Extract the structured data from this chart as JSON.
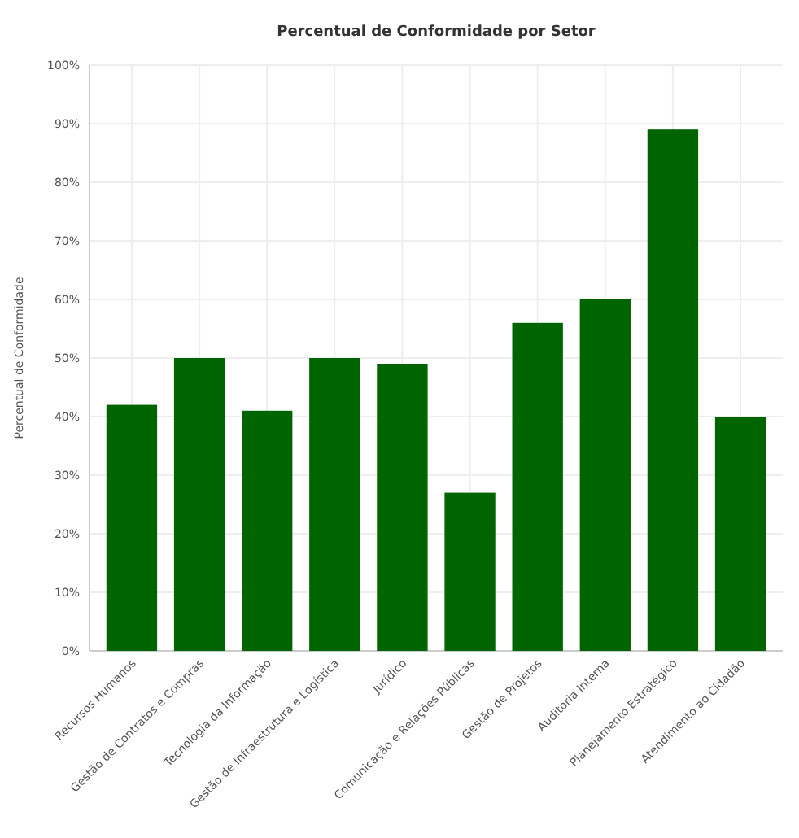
{
  "chart_data": {
    "type": "bar",
    "title": "Percentual de Conformidade por Setor",
    "ylabel": "Percentual de Conformidade",
    "categories": [
      "Recursos Humanos",
      "Gestão de Contratos e Compras",
      "Tecnologia da Informação",
      "Gestão de Infraestrutura e Logística",
      "Jurídico",
      "Comunicação e Relações Públicas",
      "Gestão de Projetos",
      "Auditoria Interna",
      "Planejamento Estratégico",
      "Atendimento ao Cidadão"
    ],
    "values": [
      42,
      50,
      41,
      50,
      49,
      27,
      56,
      60,
      89,
      40
    ],
    "color": "#006400",
    "ylim": [
      0,
      100
    ],
    "yticks": [
      {
        "value": 0,
        "label": "0%"
      },
      {
        "value": 10,
        "label": "10%"
      },
      {
        "value": 20,
        "label": "20%"
      },
      {
        "value": 30,
        "label": "30%"
      },
      {
        "value": 40,
        "label": "40%"
      },
      {
        "value": 50,
        "label": "50%"
      },
      {
        "value": 60,
        "label": "60%"
      },
      {
        "value": 70,
        "label": "70%"
      },
      {
        "value": 80,
        "label": "80%"
      },
      {
        "value": 90,
        "label": "90%"
      },
      {
        "value": 100,
        "label": "100%"
      }
    ],
    "grid": true
  }
}
